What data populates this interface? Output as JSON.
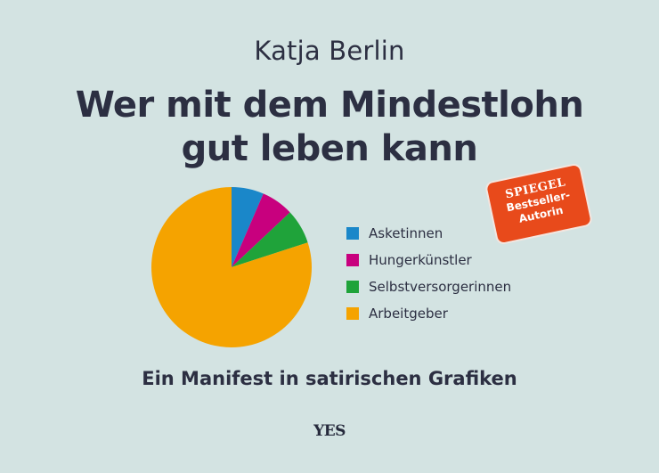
{
  "cover": {
    "author": "Katja Berlin",
    "title_line1": "Wer mit dem Mindestlohn",
    "title_line2": "gut leben kann",
    "subtitle": "Ein Manifest in satirischen Grafiken",
    "publisher": "YES",
    "badge": {
      "line1": "SPIEGEL",
      "line2": "Bestseller-",
      "line3": "Autorin",
      "color": "#e84a1b"
    },
    "background": "#d3e3e2"
  },
  "legend": [
    {
      "label": "Asketinnen",
      "color": "#1a87c9"
    },
    {
      "label": "Hungerkünstler",
      "color": "#c8007e"
    },
    {
      "label": "Selbstversorgerinnen",
      "color": "#1fa33a"
    },
    {
      "label": "Arbeitgeber",
      "color": "#f5a300"
    }
  ],
  "chart_data": {
    "type": "pie",
    "title": "Wer mit dem Mindestlohn gut leben kann",
    "categories": [
      "Asketinnen",
      "Hungerkünstler",
      "Selbstversorgerinnen",
      "Arbeitgeber"
    ],
    "values": [
      6.5,
      6.5,
      7,
      80
    ],
    "colors": [
      "#1a87c9",
      "#c8007e",
      "#1fa33a",
      "#f5a300"
    ],
    "start_angle": "12 o'clock, clockwise",
    "legend_position": "right"
  }
}
